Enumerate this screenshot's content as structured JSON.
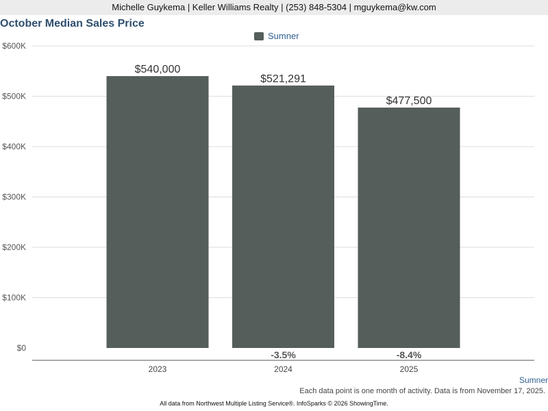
{
  "header": {
    "contact": "Michelle Guykema | Keller Williams Realty | (253) 848-5304 | mguykema@kw.com"
  },
  "chart_data": {
    "type": "bar",
    "title": "October Median Sales Price",
    "categories": [
      "2023",
      "2024",
      "2025"
    ],
    "series": [
      {
        "name": "Sumner",
        "values": [
          540000,
          521291,
          477500
        ],
        "value_labels": [
          "$540,000",
          "$521,291",
          "$477,500"
        ],
        "change_labels": [
          "",
          "-3.5%",
          "-8.4%"
        ],
        "color": "#555e5b"
      }
    ],
    "yticks": [
      0,
      100000,
      200000,
      300000,
      400000,
      500000,
      600000
    ],
    "ytick_labels": [
      "$0",
      "$100K",
      "$200K",
      "$300K",
      "$400K",
      "$500K",
      "$600K"
    ],
    "ylim": [
      0,
      600000
    ],
    "xlabel": "",
    "ylabel": "",
    "grid": true,
    "legend": "top-center"
  },
  "footer": {
    "area_label": "Sumner",
    "note": "Each data point is one month of activity. Data is from November 17, 2025.",
    "source": "All data from Northwest Multiple Listing Service®. InfoSparks © 2026 ShowingTime."
  }
}
